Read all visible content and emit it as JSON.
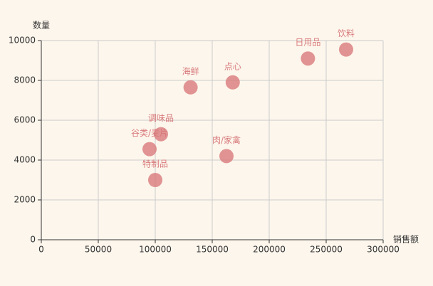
{
  "chart_data": {
    "type": "scatter",
    "x_label": "销售额",
    "y_label": "数量",
    "point_labels": [
      "谷类/麦片",
      "调味品",
      "特制品",
      "海鲜",
      "点心",
      "肉/家禽",
      "日用品",
      "饮料"
    ],
    "x": [
      95000,
      105000,
      100000,
      131000,
      168000,
      162500,
      234000,
      267500
    ],
    "values": [
      4550,
      5300,
      3000,
      7650,
      7900,
      4200,
      9100,
      9550
    ],
    "color": "#d87a7c",
    "xlim": [
      0,
      300000
    ],
    "xticks": [
      0,
      50000,
      100000,
      150000,
      200000,
      250000,
      300000
    ],
    "ylim": [
      0,
      10000
    ],
    "yticks": [
      0,
      2000,
      4000,
      6000,
      8000,
      10000
    ],
    "grid": true
  }
}
